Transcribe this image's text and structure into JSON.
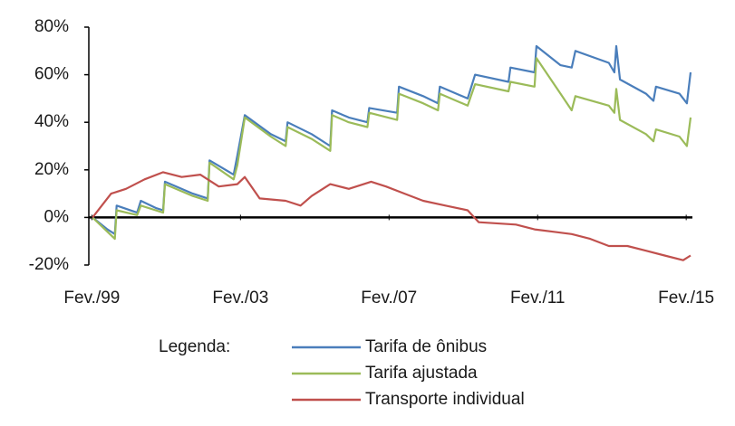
{
  "chart_data": {
    "type": "line",
    "xlim": [
      1999.0,
      2015.25
    ],
    "ylim": [
      -20,
      80
    ],
    "xticks": [
      {
        "value": 1999.083,
        "label": "Fev./99"
      },
      {
        "value": 2003.083,
        "label": "Fev./03"
      },
      {
        "value": 2007.083,
        "label": "Fev./07"
      },
      {
        "value": 2011.083,
        "label": "Fev./11"
      },
      {
        "value": 2015.083,
        "label": "Fev./15"
      }
    ],
    "yticks": [
      {
        "value": -20,
        "label": "-20%"
      },
      {
        "value": 0,
        "label": "0%"
      },
      {
        "value": 20,
        "label": "20%"
      },
      {
        "value": 40,
        "label": "40%"
      },
      {
        "value": 60,
        "label": "60%"
      },
      {
        "value": 80,
        "label": "80%"
      }
    ],
    "legend_title": "Legenda:",
    "series": [
      {
        "name": "Tarifa de ônibus",
        "color": "#4a7ebb",
        "x": [
          1999.1,
          1999.5,
          1999.7,
          1999.75,
          2000.3,
          2000.4,
          2000.8,
          2001.0,
          2001.05,
          2001.8,
          2002.2,
          2002.25,
          2002.9,
          2003.0,
          2003.2,
          2003.9,
          2004.3,
          2004.35,
          2005.0,
          2005.5,
          2005.55,
          2006.0,
          2006.5,
          2006.55,
          2007.3,
          2007.35,
          2008.0,
          2008.4,
          2008.45,
          2009.2,
          2009.4,
          2010.3,
          2010.35,
          2011.0,
          2011.05,
          2011.7,
          2012.0,
          2012.1,
          2013.0,
          2013.15,
          2013.2,
          2013.3,
          2014.0,
          2014.2,
          2014.27,
          2014.9,
          2015.1,
          2015.2
        ],
        "values": [
          0,
          -5,
          -7,
          5,
          2,
          7,
          4,
          3,
          15,
          10,
          8,
          24,
          18,
          26,
          43,
          35,
          32,
          40,
          35,
          30,
          45,
          42,
          40,
          46,
          44,
          55,
          51,
          48,
          55,
          50,
          60,
          57,
          63,
          61,
          72,
          64,
          63,
          70,
          65,
          61,
          72,
          58,
          52,
          49,
          55,
          52,
          48,
          61
        ]
      },
      {
        "name": "Tarifa ajustada",
        "color": "#9bbb59",
        "x": [
          1999.1,
          1999.5,
          1999.7,
          1999.75,
          2000.3,
          2000.4,
          2000.8,
          2001.0,
          2001.05,
          2001.8,
          2002.2,
          2002.25,
          2002.9,
          2003.0,
          2003.2,
          2003.9,
          2004.3,
          2004.35,
          2005.0,
          2005.5,
          2005.55,
          2006.0,
          2006.5,
          2006.55,
          2007.3,
          2007.35,
          2008.0,
          2008.4,
          2008.45,
          2009.2,
          2009.4,
          2010.3,
          2010.35,
          2011.0,
          2011.05,
          2011.7,
          2012.0,
          2012.1,
          2013.0,
          2013.15,
          2013.2,
          2013.3,
          2014.0,
          2014.2,
          2014.27,
          2014.9,
          2015.1,
          2015.2
        ],
        "values": [
          0,
          -6,
          -9,
          3,
          1,
          5,
          3,
          2,
          14,
          9,
          7,
          23,
          16,
          22,
          42,
          34,
          30,
          38,
          33,
          28,
          43,
          40,
          38,
          44,
          41,
          52,
          48,
          45,
          52,
          47,
          56,
          53,
          57,
          55,
          67,
          52,
          45,
          51,
          47,
          44,
          54,
          41,
          35,
          32,
          37,
          34,
          30,
          42
        ]
      },
      {
        "name": "Transporte individual",
        "color": "#c0504d",
        "x": [
          1999.1,
          1999.6,
          2000.0,
          2000.5,
          2001.0,
          2001.5,
          2002.0,
          2002.5,
          2003.0,
          2003.2,
          2003.6,
          2004.3,
          2004.7,
          2005.0,
          2005.5,
          2006.0,
          2006.6,
          2007.0,
          2007.5,
          2008.0,
          2008.6,
          2009.2,
          2009.5,
          2010.5,
          2011.0,
          2011.5,
          2012.0,
          2012.5,
          2013.0,
          2013.5,
          2014.0,
          2014.5,
          2015.0,
          2015.2
        ],
        "values": [
          0,
          10,
          12,
          16,
          19,
          17,
          18,
          13,
          14,
          17,
          8,
          7,
          5,
          9,
          14,
          12,
          15,
          13,
          10,
          7,
          5,
          3,
          -2,
          -3,
          -5,
          -6,
          -7,
          -9,
          -12,
          -12,
          -14,
          -16,
          -18,
          -16
        ]
      }
    ]
  }
}
